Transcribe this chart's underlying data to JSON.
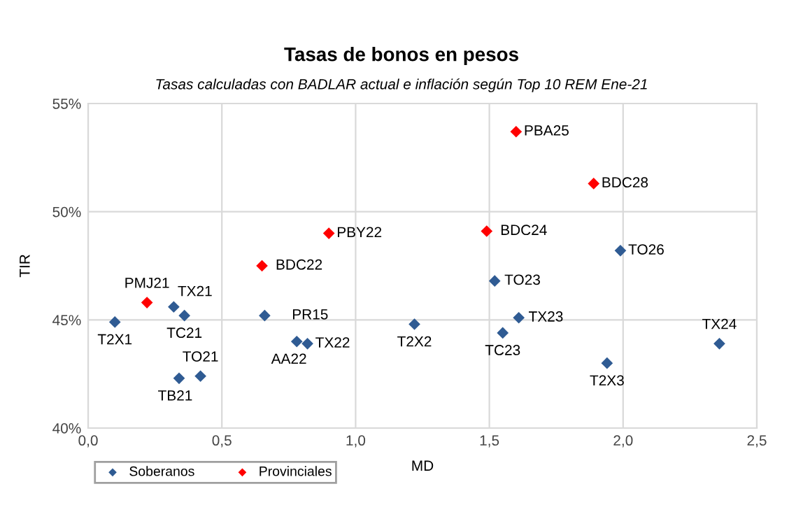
{
  "chart_data": {
    "type": "scatter",
    "title": "Tasas de bonos en pesos",
    "subtitle": "Tasas calculadas con BADLAR actual e inflación según Top 10 REM Ene-21",
    "xlabel": "MD",
    "ylabel": "TIR",
    "series": [
      {
        "name": "Soberanos",
        "color": "#2f5b93",
        "x": [
          0.1,
          0.32,
          0.36,
          0.34,
          0.42,
          0.66,
          0.78,
          0.82,
          1.22,
          1.52,
          1.61,
          1.55,
          1.99,
          1.94,
          2.36
        ],
        "values": [
          44.9,
          45.6,
          45.2,
          42.3,
          42.4,
          45.2,
          44.0,
          43.9,
          44.8,
          46.8,
          45.1,
          44.4,
          48.2,
          43.0,
          43.9
        ]
      },
      {
        "name": "Provinciales",
        "color": "#ff0000",
        "x": [
          0.22,
          0.65,
          0.9,
          1.49,
          1.6,
          1.89
        ],
        "values": [
          45.8,
          47.5,
          49.0,
          49.1,
          53.7,
          51.3
        ]
      }
    ],
    "annotations": [
      {
        "text": "T2X1",
        "x": 0.1,
        "y": 44.9
      },
      {
        "text": "TX21",
        "x": 0.32,
        "y": 45.6
      },
      {
        "text": "TC21",
        "x": 0.36,
        "y": 45.2
      },
      {
        "text": "TB21",
        "x": 0.34,
        "y": 42.3
      },
      {
        "text": "TO21",
        "x": 0.42,
        "y": 42.4
      },
      {
        "text": "PR15",
        "x": 0.66,
        "y": 45.2
      },
      {
        "text": "AA22",
        "x": 0.78,
        "y": 44.0
      },
      {
        "text": "TX22",
        "x": 0.82,
        "y": 43.9
      },
      {
        "text": "T2X2",
        "x": 1.22,
        "y": 44.8
      },
      {
        "text": "TO23",
        "x": 1.52,
        "y": 46.8
      },
      {
        "text": "TX23",
        "x": 1.61,
        "y": 45.1
      },
      {
        "text": "TC23",
        "x": 1.55,
        "y": 44.4
      },
      {
        "text": "TO26",
        "x": 1.99,
        "y": 48.2
      },
      {
        "text": "T2X3",
        "x": 1.94,
        "y": 43.0
      },
      {
        "text": "TX24",
        "x": 2.36,
        "y": 43.9
      },
      {
        "text": "PMJ21",
        "x": 0.22,
        "y": 45.8
      },
      {
        "text": "BDC22",
        "x": 0.65,
        "y": 47.5
      },
      {
        "text": "PBY22",
        "x": 0.9,
        "y": 49.0
      },
      {
        "text": "BDC24",
        "x": 1.49,
        "y": 49.1
      },
      {
        "text": "PBA25",
        "x": 1.6,
        "y": 53.7
      },
      {
        "text": "BDC28",
        "x": 1.89,
        "y": 51.3
      }
    ],
    "xlim": [
      0,
      2.5
    ],
    "xticks": [
      {
        "value": 0,
        "label": "0,0"
      },
      {
        "value": 0.5,
        "label": "0,5"
      },
      {
        "value": 1,
        "label": "1,0"
      },
      {
        "value": 1.5,
        "label": "1,5"
      },
      {
        "value": 2,
        "label": "2,0"
      },
      {
        "value": 2.5,
        "label": "2,5"
      }
    ],
    "ylim": [
      40,
      55
    ],
    "yticks": [
      {
        "value": 40,
        "label": "40%"
      },
      {
        "value": 45,
        "label": "45%"
      },
      {
        "value": 50,
        "label": "50%"
      },
      {
        "value": 55,
        "label": "55%"
      }
    ],
    "grid": true,
    "legend": "bottom",
    "marker": "diamond"
  }
}
